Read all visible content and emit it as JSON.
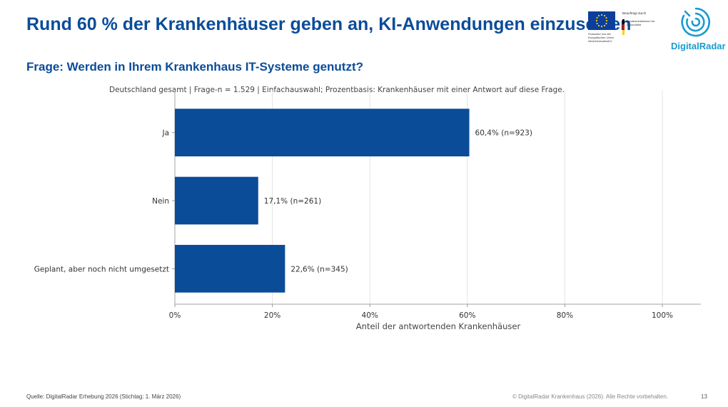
{
  "slide": {
    "title": "Rund 60 % der Krankenhäuser geben an, KI-Anwendungen einzusetzen",
    "question": "Frage: Werden in Ihrem Krankenhaus IT-Systeme genutzt?"
  },
  "logos": {
    "eu_caption": "Finanziert von der Europäischen Union NextGenerationEU",
    "bm_caption_top": "Beauftragt durch",
    "bm_caption": "Bundesministerium für Gesundheit",
    "brand": "DigitalRadar",
    "colors": {
      "eu_blue": "#0c3f9b",
      "brand": "#1a9bd1"
    }
  },
  "chart_data": {
    "type": "bar",
    "orientation": "horizontal",
    "subtitle": "Deutschland gesamt | Frage-n = 1.529 | Einfachauswahl; Prozentbasis: Krankenhäuser mit einer Antwort auf diese Frage.",
    "categories": [
      "Ja",
      "Nein",
      "Geplant, aber noch nicht umgesetzt"
    ],
    "values": [
      60.4,
      17.1,
      22.6
    ],
    "data_labels": [
      "60,4% (n=923)",
      "17,1% (n=261)",
      "22,6% (n=345)"
    ],
    "xlabel": "Anteil der antwortenden Krankenhäuser",
    "xlim": [
      0,
      100
    ],
    "xticks": [
      0,
      20,
      40,
      60,
      80,
      100
    ],
    "xtick_labels": [
      "0%",
      "20%",
      "40%",
      "60%",
      "80%",
      "100%"
    ],
    "grid": true,
    "bar_color": "#0b4c99"
  },
  "footer": {
    "source": "Quelle: DigitalRadar Erhebung 2026 (Stichtag: 1. März 2026)",
    "copyright": "© DigitalRadar Krankenhaus (2026). Alle Rechte vorbehalten.",
    "page": "13"
  }
}
